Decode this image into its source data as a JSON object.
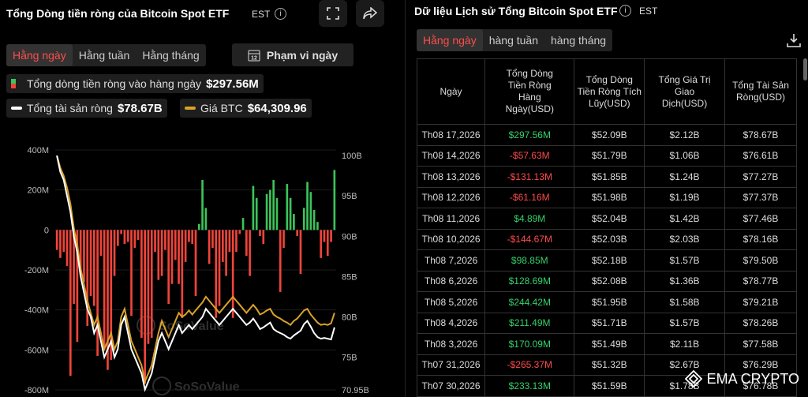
{
  "left": {
    "title": "Tổng Dòng tiền ròng của Bitcoin Spot ETF",
    "tz": "EST",
    "tabs": [
      "Hằng ngày",
      "Hằng tuần",
      "Hằng tháng"
    ],
    "range_label": "Phạm vi ngày",
    "legend": {
      "daily_label": "Tổng dòng tiền ròng vào hàng ngày",
      "daily_value": "$297.56M",
      "assets_label": "Tổng tài sản ròng",
      "assets_value": "$78.67B",
      "btc_label": "Giá BTC",
      "btc_value": "$64,309.96"
    },
    "watermark": "SoSoValue"
  },
  "chart_data": {
    "type": "bar",
    "left_axis_ticks": [
      "400M",
      "200M",
      "0",
      "-200M",
      "-400M",
      "-600M",
      "-800M"
    ],
    "right_axis_ticks": [
      "100B",
      "95B",
      "90B",
      "85B",
      "80B",
      "75B",
      "70.95B"
    ],
    "ylim_left": [
      -800,
      400
    ],
    "ylim_right": [
      70.95,
      100.7
    ],
    "series": [
      {
        "name": "Tổng dòng tiền ròng vào hàng ngày",
        "unit": "M",
        "values": [
          -100,
          -140,
          -110,
          -180,
          -730,
          -370,
          -560,
          -230,
          -260,
          -480,
          -330,
          -380,
          -630,
          -130,
          -600,
          -700,
          -650,
          -230,
          -80,
          -20,
          -70,
          -60,
          -430,
          -90,
          -50,
          -540,
          -770,
          -570,
          -540,
          -110,
          -250,
          -230,
          -100,
          -370,
          -270,
          -150,
          -270,
          -440,
          -160,
          -60,
          -70,
          -330,
          30,
          250,
          110,
          -170,
          -90,
          -440,
          -380,
          -160,
          -230,
          -110,
          -440,
          -110,
          -20,
          60,
          -130,
          -230,
          220,
          160,
          -30,
          -70,
          180,
          200,
          250,
          160,
          -310,
          -90,
          230,
          160,
          80,
          -30,
          -220,
          110,
          240,
          190,
          100,
          40,
          -140,
          -60,
          -130,
          -60,
          300
        ]
      },
      {
        "name": "Tổng tài sản ròng",
        "unit": "B",
        "values": [
          100,
          98,
          97,
          95,
          93,
          90,
          88,
          85,
          83,
          81,
          80,
          78,
          79,
          77,
          75,
          76,
          77,
          75,
          76,
          79,
          80,
          78,
          76,
          75,
          74,
          73,
          71,
          72,
          73,
          75,
          77,
          78,
          77,
          76,
          77,
          78,
          79,
          78,
          78.5,
          79,
          78.5,
          79,
          79.5,
          80,
          81,
          80.5,
          80,
          79.5,
          79,
          79.5,
          80,
          80.5,
          81,
          80.5,
          80,
          79.5,
          79,
          79.3,
          79.8,
          79.2,
          78.5,
          78.7,
          79,
          79.3,
          78.5,
          78.2,
          78,
          77.8,
          77.5,
          77.3,
          77.7,
          78,
          78.3,
          79.1,
          79.5,
          78.8,
          78,
          77.5,
          77.3,
          77.4,
          77.3,
          77.2,
          78.7
        ]
      },
      {
        "name": "Giá BTC",
        "unit": "B",
        "values": [
          100,
          98.5,
          97.5,
          96,
          94,
          91,
          89,
          86,
          84,
          82,
          80.5,
          79,
          80,
          78,
          76,
          77,
          78,
          76,
          77,
          80,
          81,
          79,
          77,
          76,
          75,
          74,
          72,
          73,
          74,
          76,
          78,
          79.5,
          78.5,
          77.5,
          78.5,
          79.5,
          80.5,
          80,
          80.3,
          80.8,
          80.3,
          80.8,
          81.3,
          81.8,
          82.5,
          82,
          81.5,
          81,
          80.5,
          81,
          81.5,
          82,
          82.5,
          82,
          81.5,
          81,
          80.5,
          81,
          81.5,
          81,
          80.3,
          80.5,
          80.8,
          81,
          80.3,
          80,
          79.8,
          79.5,
          79.3,
          79,
          79.5,
          79.8,
          80.3,
          80.8,
          81,
          80.3,
          79.8,
          79.3,
          79,
          79.1,
          79,
          79.2,
          80.5
        ]
      }
    ]
  },
  "table": {
    "title": "Dữ liệu Lịch sử Tổng Bitcoin Spot ETF",
    "tz": "EST",
    "tabs": [
      "Hằng ngày",
      "hàng tuần",
      "hàng tháng"
    ],
    "headers": [
      "Ngày",
      "Tổng Dòng Tiền Ròng Hàng Ngày(USD)",
      "Tổng Dòng Tiền Ròng Tích Lũy(USD)",
      "Tổng Giá Trị Giao Dịch(USD)",
      "Tổng Tài Sản Ròng(USD)"
    ],
    "rows": [
      [
        "Th08 17,2026",
        "$297.56M",
        "$52.09B",
        "$2.12B",
        "$78.67B"
      ],
      [
        "Th08 14,2026",
        "-$57.63M",
        "$51.79B",
        "$1.06B",
        "$76.61B"
      ],
      [
        "Th08 13,2026",
        "-$131.13M",
        "$51.85B",
        "$1.24B",
        "$77.27B"
      ],
      [
        "Th08 12,2026",
        "-$61.16M",
        "$51.98B",
        "$1.19B",
        "$77.37B"
      ],
      [
        "Th08 11,2026",
        "$4.89M",
        "$52.04B",
        "$1.42B",
        "$77.46B"
      ],
      [
        "Th08 10,2026",
        "-$144.67M",
        "$52.03B",
        "$2.03B",
        "$78.16B"
      ],
      [
        "Th08 7,2026",
        "$98.85M",
        "$52.18B",
        "$1.57B",
        "$79.50B"
      ],
      [
        "Th08 6,2026",
        "$128.69M",
        "$52.08B",
        "$1.36B",
        "$78.77B"
      ],
      [
        "Th08 5,2026",
        "$244.42M",
        "$51.95B",
        "$1.58B",
        "$79.21B"
      ],
      [
        "Th08 4,2026",
        "$211.49M",
        "$51.71B",
        "$1.57B",
        "$78.26B"
      ],
      [
        "Th08 3,2026",
        "$170.09M",
        "$51.49B",
        "$2.11B",
        "$77.58B"
      ],
      [
        "Th07 31,2026",
        "-$265.37M",
        "$51.32B",
        "$2.67B",
        "$76.29B"
      ],
      [
        "Th07 30,2026",
        "$233.13M",
        "$51.59B",
        "$1.78B",
        "$76.78B"
      ]
    ]
  },
  "corner_watermark": "EMA CRYPTO",
  "colors": {
    "positive": "#3cc35a",
    "negative": "#f0443a",
    "btc": "#d9a227",
    "assets": "#ffffff",
    "active_tab": "#ff4d4d"
  }
}
